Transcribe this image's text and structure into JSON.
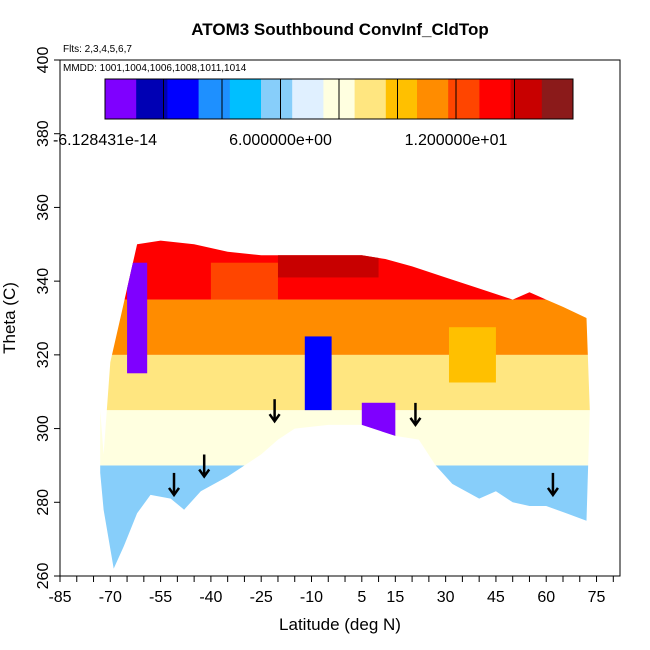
{
  "chart_data": {
    "type": "heatmap",
    "title": "ATOM3 Southbound ConvInf_CldTop",
    "annotations": [
      "Flts: 2,3,4,5,6,7",
      "MMDD: 1001,1004,1006,1008,1011,1014"
    ],
    "xlabel": "Latitude (deg N)",
    "ylabel": "Theta (C)",
    "xlim": [
      -85,
      82
    ],
    "ylim": [
      260,
      400
    ],
    "x_ticks": [
      -85,
      -70,
      -55,
      -40,
      -25,
      -10,
      5,
      15,
      30,
      45,
      60,
      75
    ],
    "y_ticks": [
      260,
      280,
      300,
      320,
      340,
      360,
      380,
      400
    ],
    "colorbar": {
      "min": -6.128431e-14,
      "max": 16,
      "tick_values": [
        -6.128431e-14,
        6,
        12
      ],
      "tick_labels": [
        "-6.128431e-14",
        "6.000000e+00",
        "1.200000e+01"
      ],
      "colors": [
        "#7f00ff",
        "#0000b4",
        "#0000ff",
        "#1e90ff",
        "#00bfff",
        "#87cefa",
        "#e0f0ff",
        "#ffffe0",
        "#ffe680",
        "#ffc000",
        "#ff8c00",
        "#ff4500",
        "#ff0000",
        "#c80000",
        "#8b1a1a"
      ]
    },
    "upper_boundary": [
      [
        -72,
        293
      ],
      [
        -70,
        318
      ],
      [
        -67,
        330
      ],
      [
        -64,
        342
      ],
      [
        -62,
        350
      ],
      [
        -55,
        351
      ],
      [
        -45,
        350
      ],
      [
        -35,
        348
      ],
      [
        -25,
        347
      ],
      [
        -15,
        347
      ],
      [
        -5,
        347
      ],
      [
        5,
        347
      ],
      [
        12,
        346
      ],
      [
        20,
        344
      ],
      [
        30,
        341
      ],
      [
        40,
        338
      ],
      [
        50,
        335
      ],
      [
        55,
        337
      ],
      [
        60,
        335
      ],
      [
        65,
        333
      ],
      [
        72,
        330
      ],
      [
        73,
        305
      ]
    ],
    "lower_boundary": [
      [
        -73,
        305
      ],
      [
        -73,
        288
      ],
      [
        -72,
        278
      ],
      [
        -69,
        262
      ],
      [
        -66,
        268
      ],
      [
        -62,
        277
      ],
      [
        -58,
        282
      ],
      [
        -52,
        281
      ],
      [
        -48,
        278
      ],
      [
        -43,
        283
      ],
      [
        -35,
        287
      ],
      [
        -25,
        293
      ],
      [
        -20,
        297
      ],
      [
        -15,
        300
      ],
      [
        -5,
        301
      ],
      [
        5,
        301
      ],
      [
        15,
        298
      ],
      [
        22,
        297
      ],
      [
        27,
        290
      ],
      [
        32,
        285
      ],
      [
        40,
        281
      ],
      [
        45,
        283
      ],
      [
        50,
        280
      ],
      [
        55,
        279
      ],
      [
        60,
        279
      ],
      [
        66,
        277
      ],
      [
        72,
        275
      ],
      [
        73,
        305
      ]
    ],
    "arrows": [
      [
        -51,
        282
      ],
      [
        -42,
        287
      ],
      [
        -21,
        302
      ],
      [
        21,
        301
      ],
      [
        62,
        282
      ]
    ],
    "value_bands": [
      {
        "theta_min": 260,
        "theta_max": 290,
        "value": 5.5
      },
      {
        "theta_min": 290,
        "theta_max": 305,
        "value": 7.5
      },
      {
        "theta_min": 305,
        "theta_max": 320,
        "value": 9.5
      },
      {
        "theta_min": 320,
        "theta_max": 335,
        "value": 11.0
      },
      {
        "theta_min": 335,
        "theta_max": 352,
        "value": 13.0
      }
    ],
    "features": [
      {
        "lat": -62,
        "theta": 330,
        "lat_span": 6,
        "theta_span": 30,
        "value": 0.5
      },
      {
        "lat": -8,
        "theta": 315,
        "lat_span": 8,
        "theta_span": 20,
        "value": 3.0
      },
      {
        "lat": 10,
        "theta": 302,
        "lat_span": 10,
        "theta_span": 10,
        "value": 0.2
      },
      {
        "lat": -5,
        "theta": 345,
        "lat_span": 30,
        "theta_span": 8,
        "value": 14.5
      },
      {
        "lat": -30,
        "theta": 340,
        "lat_span": 20,
        "theta_span": 10,
        "value": 12.5
      },
      {
        "lat": 38,
        "theta": 320,
        "lat_span": 14,
        "theta_span": 15,
        "value": 10.5
      }
    ]
  }
}
